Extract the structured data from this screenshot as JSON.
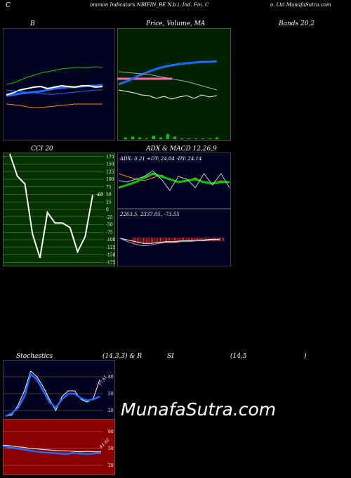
{
  "header": {
    "left": "C",
    "center": "ommon  Indicators NBIFIN_BE N.b.i. Ind. Fin. C",
    "right": "o. Ltd MunafaSutra.com"
  },
  "titles": {
    "b": "B",
    "price": "Price,  Volume,  MA",
    "bands": "Bands 20,2",
    "cci": "CCI 20",
    "adx_macd": "ADX  & MACD 12,26,9",
    "stoch": "Stochastics",
    "stoch_params": "(14,3,3) & R",
    "rsi_a": "SI",
    "rsi_b": "(14,5",
    "rsi_c": ")"
  },
  "watermark": "MunafaSutra.com",
  "colors": {
    "panel_black": "#000020",
    "panel_green": "#002200",
    "panel_olive": "#003300",
    "panel_red": "#8b0000",
    "blue": "#1e6bff",
    "white": "#ffffff",
    "green": "#00cc00",
    "orange": "#ff8c00",
    "pink": "#ff69b4"
  },
  "chart_data": [
    {
      "type": "line",
      "panel": "bollinger",
      "series": [
        {
          "values": [
            80,
            78,
            74,
            70,
            67,
            64,
            62,
            60,
            58,
            57,
            56,
            56,
            56,
            55,
            56
          ]
        },
        {
          "values": [
            96,
            95,
            93,
            92,
            91,
            90,
            88,
            86,
            85,
            84,
            84,
            83,
            82,
            82,
            81
          ]
        },
        {
          "values": [
            95,
            92,
            88,
            86,
            84,
            83,
            86,
            84,
            82,
            83,
            84,
            82,
            82,
            84,
            83
          ]
        },
        {
          "values": [
            108,
            109,
            110,
            112,
            113,
            113,
            112,
            111,
            110,
            109,
            108,
            108,
            108,
            108,
            108
          ]
        },
        {
          "values": [
            88,
            89,
            90,
            91,
            92,
            93,
            94,
            94,
            93,
            92,
            91,
            90,
            89,
            88,
            88
          ]
        }
      ]
    },
    {
      "type": "line",
      "panel": "price_volume_ma",
      "series": [
        {
          "values": [
            80,
            76,
            71,
            66,
            62,
            58,
            55,
            53,
            51,
            50,
            49,
            48,
            48,
            47
          ]
        },
        {
          "values": [
            62,
            63,
            64,
            65,
            66,
            68,
            70,
            72,
            74,
            76,
            79,
            82,
            85,
            88
          ]
        },
        {
          "values": [
            88,
            90,
            92,
            95,
            96,
            100,
            97,
            101,
            98,
            96,
            100,
            95,
            98,
            96
          ]
        }
      ],
      "volume": [
        2,
        3,
        2,
        1,
        4,
        2,
        6,
        3,
        1,
        1,
        1,
        1,
        1,
        2
      ]
    },
    {
      "type": "line",
      "panel": "cci",
      "y_ticks": [
        175,
        150,
        125,
        100,
        75,
        50,
        25,
        0,
        -25,
        -50,
        -75,
        -100,
        -125,
        -150,
        -175
      ],
      "last_label": "48",
      "values": [
        200,
        110,
        85,
        -80,
        -160,
        -10,
        -45,
        -45,
        -60,
        -140,
        -90,
        48
      ]
    },
    {
      "type": "line",
      "panel": "adx",
      "text": "ADX: 0.21  +DY: 24.04  -DY: 24.14",
      "series": [
        {
          "values": [
            30,
            28,
            26,
            25,
            27,
            29,
            26,
            24,
            25,
            27,
            24,
            23,
            25,
            24
          ]
        },
        {
          "values": [
            20,
            22,
            24,
            27,
            30,
            28,
            26,
            24,
            25,
            26,
            24,
            23,
            24,
            24
          ]
        },
        {
          "values": [
            25,
            24,
            26,
            28,
            32,
            26,
            18,
            28,
            26,
            20,
            30,
            22,
            30,
            20
          ]
        }
      ]
    },
    {
      "type": "line",
      "panel": "macd",
      "text": "2263.5,  2337.05,  -73.55",
      "series": [
        {
          "values": [
            0,
            -2,
            -4,
            -6,
            -6,
            -5,
            -4,
            -4,
            -3,
            -3,
            -2,
            -2,
            -1,
            -1
          ]
        },
        {
          "values": [
            0,
            -4,
            -7,
            -9,
            -8,
            -6,
            -5,
            -5,
            -4,
            -4,
            -3,
            -3,
            -2,
            -2
          ]
        }
      ]
    },
    {
      "type": "line",
      "panel": "stochastics",
      "y_ticks": [
        80,
        50,
        20
      ],
      "last_label": "77.61",
      "series": [
        {
          "values": [
            10,
            12,
            30,
            55,
            90,
            80,
            62,
            40,
            20,
            45,
            55,
            55,
            40,
            35,
            42,
            75
          ]
        },
        {
          "values": [
            10,
            15,
            25,
            45,
            85,
            75,
            55,
            35,
            25,
            40,
            50,
            50,
            42,
            38,
            40,
            45
          ]
        }
      ]
    },
    {
      "type": "line",
      "panel": "rsi",
      "y_ticks": [
        80,
        50,
        20
      ],
      "last_label": "41.62",
      "series": [
        {
          "values": [
            56,
            55,
            53,
            52,
            50,
            49,
            48,
            47,
            46,
            46,
            45,
            44,
            45,
            44,
            44
          ]
        },
        {
          "values": [
            54,
            52,
            50,
            48,
            46,
            44,
            43,
            42,
            41,
            40,
            42,
            41,
            40,
            41,
            42
          ]
        }
      ]
    }
  ]
}
